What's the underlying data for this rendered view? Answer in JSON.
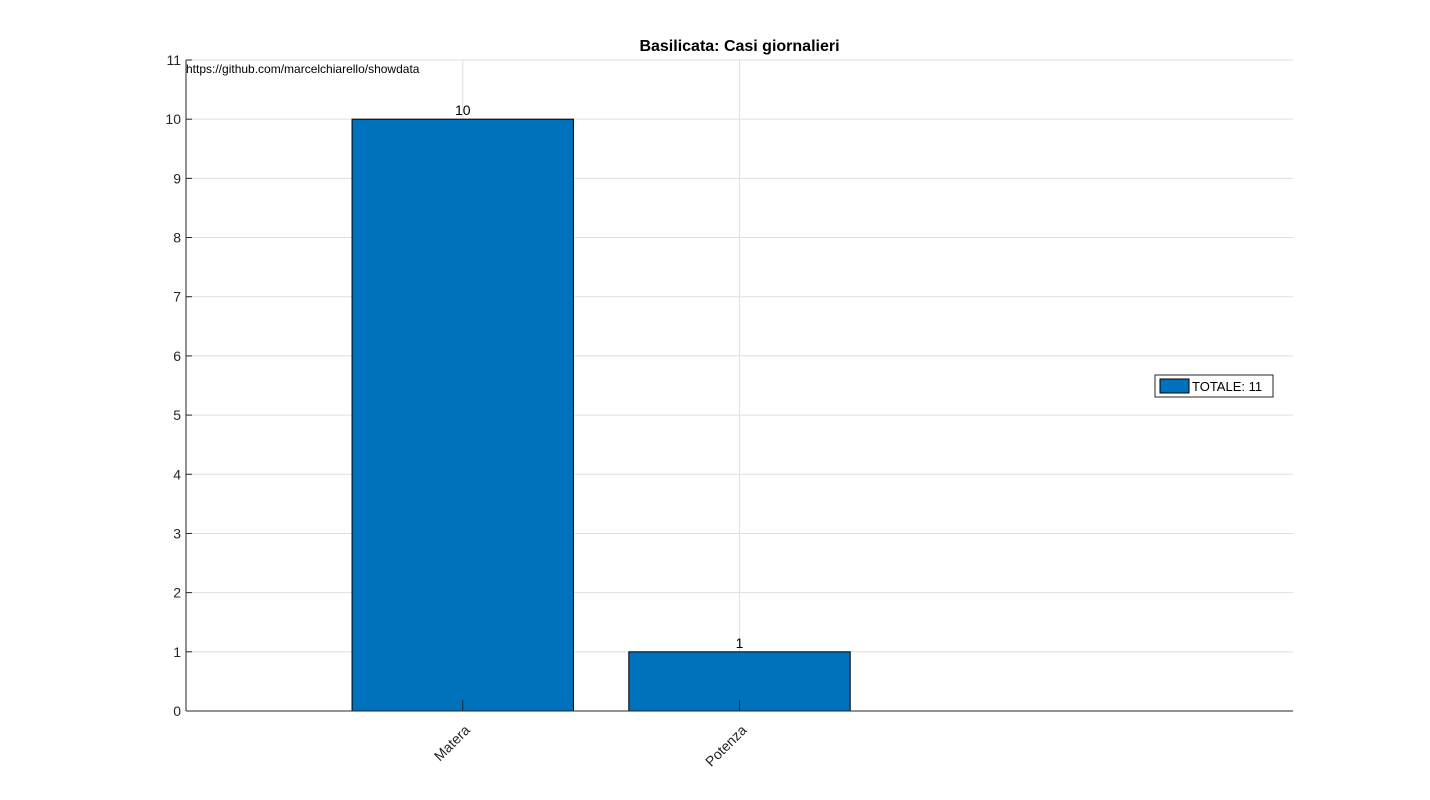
{
  "chart_data": {
    "type": "bar",
    "title": "Basilicata: Casi giornalieri",
    "categories": [
      "Matera",
      "Potenza"
    ],
    "series": [
      {
        "name": "TOTALE: 11",
        "values": [
          10,
          1
        ],
        "color": "#0072BD"
      }
    ],
    "data_labels": [
      "10",
      "1"
    ],
    "annotation": "https://github.com/marcelchiarello/showdata",
    "xlabel": "",
    "ylabel": "",
    "ylim": [
      0,
      11
    ],
    "yticks": [
      0,
      1,
      2,
      3,
      4,
      5,
      6,
      7,
      8,
      9,
      10,
      11
    ],
    "xlim": [
      0,
      4
    ],
    "grid": true,
    "legend_position": "right",
    "x_tick_rotation": -45
  }
}
